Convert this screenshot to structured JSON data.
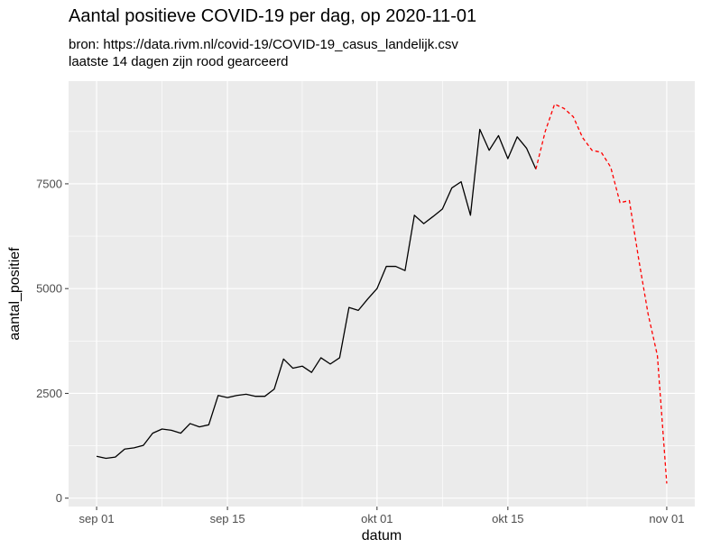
{
  "chart_data": {
    "type": "line",
    "title": "Aantal positieve COVID-19 per dag, op 2020-11-01",
    "subtitle_lines": [
      "bron: https://data.rivm.nl/covid-19/COVID-19_casus_landelijk.csv",
      "laatste 14 dagen zijn rood gearceerd"
    ],
    "xlabel": "datum",
    "ylabel": "aantal_positief",
    "x_ticks": [
      "sep 01",
      "sep 15",
      "okt 01",
      "okt 15",
      "nov 01"
    ],
    "x_tick_dates": [
      "2020-09-01",
      "2020-09-15",
      "2020-10-01",
      "2020-10-15",
      "2020-11-01"
    ],
    "y_ticks": [
      0,
      2500,
      5000,
      7500
    ],
    "ylim": [
      -200,
      9950
    ],
    "xlim": [
      "2020-08-29",
      "2020-11-04"
    ],
    "grid": true,
    "series": [
      {
        "style": "solid",
        "color": "#000000",
        "x": [
          "2020-09-01",
          "2020-09-02",
          "2020-09-03",
          "2020-09-04",
          "2020-09-05",
          "2020-09-06",
          "2020-09-07",
          "2020-09-08",
          "2020-09-09",
          "2020-09-10",
          "2020-09-11",
          "2020-09-12",
          "2020-09-13",
          "2020-09-14",
          "2020-09-15",
          "2020-09-16",
          "2020-09-17",
          "2020-09-18",
          "2020-09-19",
          "2020-09-20",
          "2020-09-21",
          "2020-09-22",
          "2020-09-23",
          "2020-09-24",
          "2020-09-25",
          "2020-09-26",
          "2020-09-27",
          "2020-09-28",
          "2020-09-29",
          "2020-09-30",
          "2020-10-01",
          "2020-10-02",
          "2020-10-03",
          "2020-10-04",
          "2020-10-05",
          "2020-10-06",
          "2020-10-07",
          "2020-10-08",
          "2020-10-09",
          "2020-10-10",
          "2020-10-11",
          "2020-10-12",
          "2020-10-13",
          "2020-10-14",
          "2020-10-15",
          "2020-10-16",
          "2020-10-17",
          "2020-10-18"
        ],
        "values": [
          1000,
          950,
          980,
          1170,
          1200,
          1260,
          1550,
          1650,
          1620,
          1550,
          1780,
          1700,
          1750,
          2450,
          2400,
          2450,
          2480,
          2430,
          2430,
          2600,
          3320,
          3100,
          3150,
          3000,
          3350,
          3200,
          3350,
          4550,
          4480,
          4750,
          5000,
          5530,
          5530,
          5430,
          6750,
          6550,
          6720,
          6900,
          7400,
          7550,
          6750,
          8800,
          8300,
          8650,
          8100,
          8620,
          8350,
          7850
        ]
      },
      {
        "style": "dashed",
        "color": "#ff0000",
        "x": [
          "2020-10-18",
          "2020-10-19",
          "2020-10-20",
          "2020-10-21",
          "2020-10-22",
          "2020-10-23",
          "2020-10-24",
          "2020-10-25",
          "2020-10-26",
          "2020-10-27",
          "2020-10-28",
          "2020-10-29",
          "2020-10-30",
          "2020-10-31",
          "2020-11-01"
        ],
        "values": [
          7850,
          8750,
          9400,
          9300,
          9100,
          8600,
          8300,
          8250,
          7900,
          7050,
          7100,
          5700,
          4400,
          3400,
          350
        ]
      }
    ]
  }
}
